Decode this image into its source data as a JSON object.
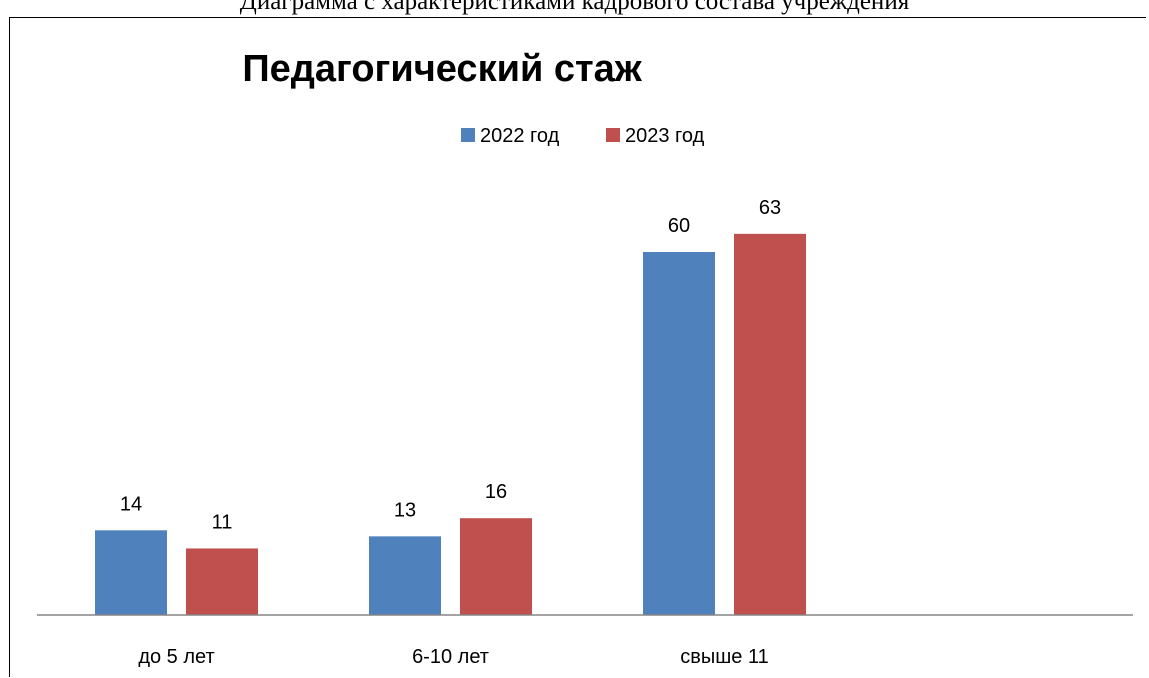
{
  "page": {
    "caption": "Диаграмма с характеристиками кадрового состава учреждения"
  },
  "chart_data": {
    "type": "bar",
    "title": "Педагогический стаж",
    "categories": [
      "до 5 лет",
      "6-10 лет",
      "свыше 11"
    ],
    "series": [
      {
        "name": "2022 год",
        "values": [
          14,
          13,
          60
        ],
        "color": "#4F81BD"
      },
      {
        "name": "2023 год",
        "values": [
          11,
          16,
          63
        ],
        "color": "#C0504D"
      }
    ],
    "ylim": [
      0,
      70
    ],
    "grid": false,
    "legend_position": "top",
    "data_labels": true
  }
}
